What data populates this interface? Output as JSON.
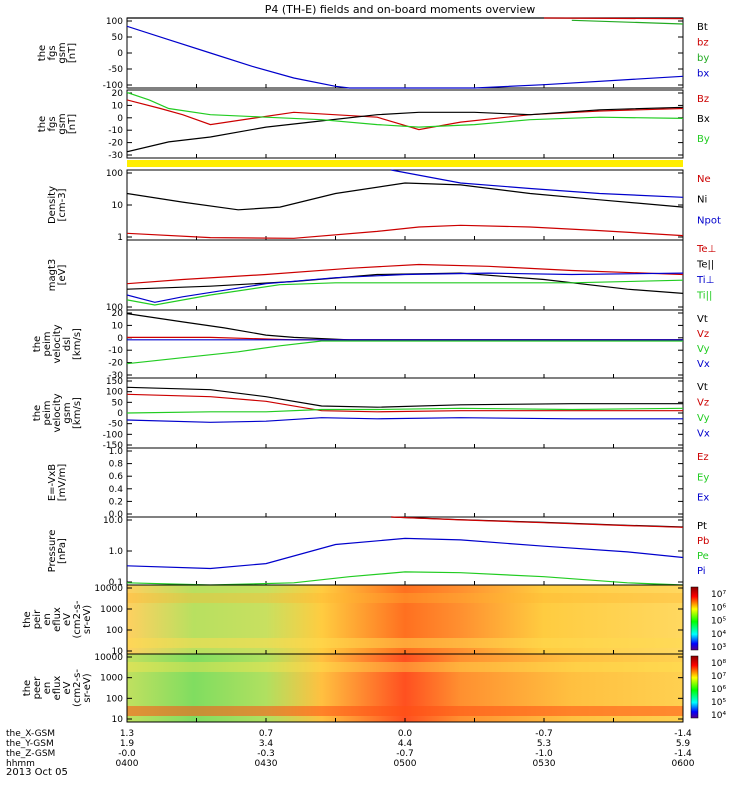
{
  "title": "P4 (TH-E) fields and on-board moments overview",
  "date_label": "2013 Oct 05",
  "colors": {
    "black": "#000000",
    "red": "#cc0000",
    "green": "#22cc22",
    "blue": "#0000cc",
    "yellow": "#ffee00"
  },
  "chart_data": [
    {
      "type": "line",
      "id": "bfield_dsl",
      "ylabel": [
        "the",
        "fgs",
        "gsm",
        "[nT]"
      ],
      "yticks": [
        "100",
        "50",
        "0",
        "-50",
        "-100"
      ],
      "ylim": [
        -100,
        110
      ],
      "series": [
        {
          "name": "Bt",
          "color": "#000000",
          "points": [
            [
              4.0,
              120
            ],
            [
              6.0,
              120
            ]
          ]
        },
        {
          "name": "bz",
          "color": "#cc0000",
          "points": [
            [
              5.5,
              110
            ],
            [
              6.0,
              108
            ]
          ]
        },
        {
          "name": "by",
          "color": "#22aa22",
          "points": [
            [
              5.6,
              103
            ],
            [
              6.0,
              92
            ]
          ]
        },
        {
          "name": "bx",
          "color": "#0000cc",
          "points": [
            [
              4.0,
              85
            ],
            [
              4.15,
              45
            ],
            [
              4.3,
              5
            ],
            [
              4.45,
              -35
            ],
            [
              4.6,
              -70
            ],
            [
              4.75,
              -95
            ],
            [
              4.8,
              -100
            ],
            [
              5.25,
              -100
            ],
            [
              5.5,
              -90
            ],
            [
              6.0,
              -65
            ]
          ]
        }
      ]
    },
    {
      "type": "line",
      "id": "bfield_zoom",
      "ylabel": [
        "the",
        "fgs",
        "gsm",
        "[nT]"
      ],
      "yticks": [
        "20",
        "10",
        "0",
        "-10",
        "-20",
        "-30"
      ],
      "ylim": [
        -35,
        20
      ],
      "series": [
        {
          "name": "Bz",
          "color": "#cc0000",
          "points": [
            [
              4.0,
              12
            ],
            [
              4.12,
              5
            ],
            [
              4.2,
              0
            ],
            [
              4.3,
              -8
            ],
            [
              4.45,
              -3
            ],
            [
              4.6,
              2
            ],
            [
              4.9,
              -2
            ],
            [
              5.05,
              -12
            ],
            [
              5.2,
              -6
            ],
            [
              5.45,
              0
            ],
            [
              5.7,
              3
            ],
            [
              6.0,
              5
            ]
          ]
        },
        {
          "name": "Bx",
          "color": "#000000",
          "points": [
            [
              4.0,
              -30
            ],
            [
              4.15,
              -22
            ],
            [
              4.3,
              -18
            ],
            [
              4.5,
              -10
            ],
            [
              4.7,
              -5
            ],
            [
              4.9,
              0
            ],
            [
              5.05,
              2
            ],
            [
              5.25,
              2
            ],
            [
              5.45,
              0
            ],
            [
              5.7,
              4
            ],
            [
              6.0,
              6
            ]
          ]
        },
        {
          "name": "By",
          "color": "#22cc22",
          "points": [
            [
              4.0,
              18
            ],
            [
              4.08,
              12
            ],
            [
              4.15,
              5
            ],
            [
              4.3,
              0
            ],
            [
              4.5,
              -2
            ],
            [
              4.7,
              -4
            ],
            [
              4.9,
              -8
            ],
            [
              5.05,
              -10
            ],
            [
              5.25,
              -8
            ],
            [
              5.45,
              -4
            ],
            [
              5.7,
              -2
            ],
            [
              6.0,
              -3
            ]
          ]
        }
      ]
    },
    {
      "type": "line",
      "id": "density",
      "ylabel": [
        "Density",
        "[cm-3]"
      ],
      "yticks": [
        "100",
        "10",
        "1"
      ],
      "ylim": [
        0.7,
        200
      ],
      "log": true,
      "series": [
        {
          "name": "Ne",
          "color": "#cc0000",
          "points": [
            [
              4.0,
              1.2
            ],
            [
              4.3,
              0.85
            ],
            [
              4.6,
              0.8
            ],
            [
              4.9,
              1.4
            ],
            [
              5.05,
              2.0
            ],
            [
              5.2,
              2.3
            ],
            [
              5.45,
              2.0
            ],
            [
              5.7,
              1.5
            ],
            [
              6.0,
              1.0
            ]
          ]
        },
        {
          "name": "Ni",
          "color": "#000000",
          "points": [
            [
              4.0,
              30
            ],
            [
              4.2,
              15
            ],
            [
              4.4,
              8
            ],
            [
              4.55,
              10
            ],
            [
              4.75,
              30
            ],
            [
              5.0,
              70
            ],
            [
              5.2,
              60
            ],
            [
              5.45,
              30
            ],
            [
              5.7,
              18
            ],
            [
              6.0,
              10
            ]
          ]
        },
        {
          "name": "Npot",
          "color": "#0000cc",
          "points": [
            [
              4.95,
              200
            ],
            [
              5.2,
              70
            ],
            [
              5.45,
              45
            ],
            [
              5.7,
              30
            ],
            [
              6.0,
              22
            ]
          ]
        }
      ]
    },
    {
      "type": "line",
      "id": "temperature",
      "ylabel": [
        "magt3",
        "[eV]"
      ],
      "yticks": [
        "100"
      ],
      "ylim": [
        100,
        4000
      ],
      "log": true,
      "series": [
        {
          "name": "Te⊥",
          "color": "#cc0000",
          "points": [
            [
              4.0,
              400
            ],
            [
              4.2,
              500
            ],
            [
              4.5,
              650
            ],
            [
              4.8,
              900
            ],
            [
              5.05,
              1100
            ],
            [
              5.3,
              1000
            ],
            [
              5.6,
              800
            ],
            [
              6.0,
              650
            ]
          ]
        },
        {
          "name": "Te||",
          "color": "#000000",
          "points": [
            [
              4.0,
              300
            ],
            [
              4.3,
              350
            ],
            [
              4.6,
              450
            ],
            [
              4.9,
              650
            ],
            [
              5.2,
              700
            ],
            [
              5.5,
              500
            ],
            [
              5.8,
              300
            ],
            [
              6.0,
              240
            ]
          ]
        },
        {
          "name": "Ti⊥",
          "color": "#0000cc",
          "points": [
            [
              4.0,
              220
            ],
            [
              4.1,
              150
            ],
            [
              4.2,
              200
            ],
            [
              4.5,
              400
            ],
            [
              4.75,
              550
            ],
            [
              5.0,
              650
            ],
            [
              5.3,
              700
            ],
            [
              5.6,
              650
            ],
            [
              6.0,
              700
            ]
          ]
        },
        {
          "name": "Ti||",
          "color": "#22cc22",
          "points": [
            [
              4.0,
              170
            ],
            [
              4.1,
              130
            ],
            [
              4.3,
              220
            ],
            [
              4.55,
              380
            ],
            [
              4.75,
              420
            ],
            [
              5.0,
              420
            ],
            [
              5.3,
              420
            ],
            [
              5.6,
              420
            ],
            [
              6.0,
              480
            ]
          ]
        }
      ]
    },
    {
      "type": "line",
      "id": "velocity_dsl",
      "ylabel": [
        "the",
        "peim",
        "velocity",
        "dsl",
        "[km/s]"
      ],
      "yticks": [
        "20",
        "10",
        "0",
        "-10",
        "-20",
        "-30"
      ],
      "ylim": [
        -32,
        25
      ],
      "series": [
        {
          "name": "Vt",
          "color": "#000000",
          "points": [
            [
              4.0,
              22
            ],
            [
              4.2,
              15
            ],
            [
              4.35,
              10
            ],
            [
              4.5,
              4
            ],
            [
              4.6,
              2
            ],
            [
              4.8,
              0
            ],
            [
              6.0,
              0
            ]
          ]
        },
        {
          "name": "Vz",
          "color": "#cc0000",
          "points": [
            [
              4.0,
              2
            ],
            [
              4.3,
              2
            ],
            [
              4.6,
              0
            ],
            [
              6.0,
              0
            ]
          ]
        },
        {
          "name": "Vy",
          "color": "#22cc22",
          "points": [
            [
              4.0,
              -20
            ],
            [
              4.2,
              -15
            ],
            [
              4.4,
              -10
            ],
            [
              4.55,
              -5
            ],
            [
              4.7,
              -1
            ],
            [
              6.0,
              -1
            ]
          ]
        },
        {
          "name": "Vx",
          "color": "#0000cc",
          "points": [
            [
              4.0,
              0
            ],
            [
              6.0,
              0
            ]
          ]
        }
      ]
    },
    {
      "type": "line",
      "id": "velocity_gsm",
      "ylabel": [
        "the",
        "peim",
        "velocity",
        "gsm",
        "[km/s]"
      ],
      "yticks": [
        "150",
        "100",
        "50",
        "0",
        "-50",
        "-100",
        "-150"
      ],
      "ylim": [
        -150,
        150
      ],
      "series": [
        {
          "name": "Vt",
          "color": "#000000",
          "points": [
            [
              4.0,
              110
            ],
            [
              4.3,
              100
            ],
            [
              4.5,
              70
            ],
            [
              4.7,
              30
            ],
            [
              4.9,
              25
            ],
            [
              5.2,
              35
            ],
            [
              5.6,
              40
            ],
            [
              6.0,
              40
            ]
          ]
        },
        {
          "name": "Vz",
          "color": "#cc0000",
          "points": [
            [
              4.0,
              80
            ],
            [
              4.3,
              70
            ],
            [
              4.5,
              50
            ],
            [
              4.7,
              10
            ],
            [
              4.9,
              5
            ],
            [
              5.2,
              10
            ],
            [
              5.6,
              10
            ],
            [
              6.0,
              10
            ]
          ]
        },
        {
          "name": "Vy",
          "color": "#22cc22",
          "points": [
            [
              4.0,
              0
            ],
            [
              4.3,
              5
            ],
            [
              4.5,
              5
            ],
            [
              4.7,
              15
            ],
            [
              4.9,
              15
            ],
            [
              5.2,
              20
            ],
            [
              5.6,
              15
            ],
            [
              6.0,
              20
            ]
          ]
        },
        {
          "name": "Vx",
          "color": "#0000cc",
          "points": [
            [
              4.0,
              -30
            ],
            [
              4.3,
              -40
            ],
            [
              4.5,
              -35
            ],
            [
              4.7,
              -20
            ],
            [
              4.9,
              -25
            ],
            [
              5.2,
              -20
            ],
            [
              5.6,
              -25
            ],
            [
              6.0,
              -25
            ]
          ]
        }
      ]
    },
    {
      "type": "line",
      "id": "efield",
      "ylabel": [
        "E=-VxB",
        "[mV/m]"
      ],
      "yticks": [
        "1.0",
        "0.8",
        "0.6",
        "0.4",
        "0.2",
        "0.0"
      ],
      "ylim": [
        0,
        1
      ],
      "series": [
        {
          "name": "Ez",
          "color": "#cc0000",
          "points": []
        },
        {
          "name": "Ey",
          "color": "#22cc22",
          "points": []
        },
        {
          "name": "Ex",
          "color": "#0000cc",
          "points": []
        }
      ]
    },
    {
      "type": "line",
      "id": "pressure",
      "ylabel": [
        "Pressure",
        "[nPa]"
      ],
      "yticks": [
        "10.0",
        "1.0",
        "0.1"
      ],
      "ylim": [
        0.05,
        15
      ],
      "log": true,
      "series": [
        {
          "name": "Pt",
          "color": "#000000",
          "points": [
            [
              4.95,
              15
            ],
            [
              5.2,
              12
            ],
            [
              5.5,
              9.5
            ],
            [
              5.8,
              7.5
            ],
            [
              6.0,
              6.5
            ]
          ]
        },
        {
          "name": "Pb",
          "color": "#cc0000",
          "points": [
            [
              4.95,
              15
            ],
            [
              5.2,
              11.8
            ],
            [
              5.5,
              9.3
            ],
            [
              5.8,
              7.3
            ],
            [
              6.0,
              6.3
            ]
          ]
        },
        {
          "name": "Pe",
          "color": "#22cc22",
          "points": [
            [
              4.0,
              0.06
            ],
            [
              4.3,
              0.05
            ],
            [
              4.6,
              0.06
            ],
            [
              4.8,
              0.1
            ],
            [
              5.0,
              0.15
            ],
            [
              5.2,
              0.14
            ],
            [
              5.5,
              0.1
            ],
            [
              5.8,
              0.06
            ],
            [
              6.0,
              0.05
            ]
          ]
        },
        {
          "name": "Pi",
          "color": "#0000cc",
          "points": [
            [
              4.0,
              0.25
            ],
            [
              4.3,
              0.2
            ],
            [
              4.5,
              0.3
            ],
            [
              4.75,
              1.5
            ],
            [
              5.0,
              2.5
            ],
            [
              5.2,
              2.2
            ],
            [
              5.5,
              1.3
            ],
            [
              5.8,
              0.8
            ],
            [
              6.0,
              0.5
            ]
          ]
        }
      ]
    },
    {
      "type": "heatmap",
      "id": "ion_spectrogram",
      "ylabel": [
        "the",
        "peir",
        "en",
        "eflux",
        "eV",
        "(cm2-s-",
        "sr-eV)"
      ],
      "yticks": [
        "10000",
        "1000",
        "100",
        "10"
      ],
      "colorbar": [
        "10⁷",
        "10⁶",
        "10⁵",
        "10⁴",
        "10³"
      ]
    },
    {
      "type": "heatmap",
      "id": "electron_spectrogram",
      "ylabel": [
        "the",
        "peer",
        "en",
        "eflux",
        "eV",
        "(cm2-s-",
        "sr-eV)"
      ],
      "yticks": [
        "10000",
        "1000",
        "100",
        "10"
      ],
      "colorbar": [
        "10⁸",
        "10⁷",
        "10⁶",
        "10⁵",
        "10⁴"
      ]
    }
  ],
  "xaxis": {
    "rows": [
      {
        "label": "the_X-GSM",
        "values": [
          "1.3",
          "0.7",
          "0.0",
          "-0.7",
          "-1.4"
        ]
      },
      {
        "label": "the_Y-GSM",
        "values": [
          "1.9",
          "3.4",
          "4.4",
          "5.3",
          "5.9"
        ]
      },
      {
        "label": "the_Z-GSM",
        "values": [
          "-0.0",
          "-0.3",
          "-0.7",
          "-1.0",
          "-1.4"
        ]
      },
      {
        "label": "hhmm",
        "values": [
          "0400",
          "0430",
          "0500",
          "0530",
          "0600"
        ]
      }
    ]
  }
}
